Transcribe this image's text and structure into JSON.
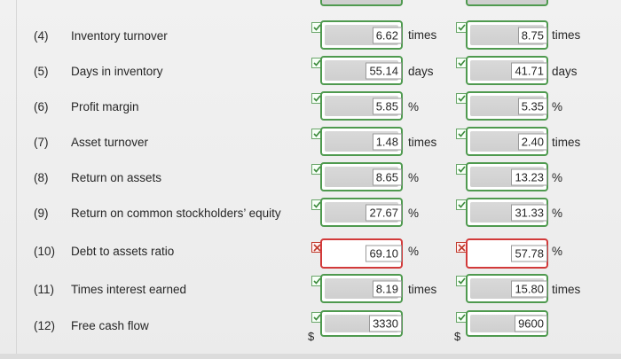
{
  "rows": [
    {
      "num": "(4)",
      "label": "Inventory turnover",
      "a": {
        "value": "6.62",
        "unit": "times",
        "status": "correct"
      },
      "b": {
        "value": "8.75",
        "unit": "times",
        "status": "correct"
      }
    },
    {
      "num": "(5)",
      "label": "Days in inventory",
      "a": {
        "value": "55.14",
        "unit": "days",
        "status": "correct"
      },
      "b": {
        "value": "41.71",
        "unit": "days",
        "status": "correct"
      }
    },
    {
      "num": "(6)",
      "label": "Profit margin",
      "a": {
        "value": "5.85",
        "unit": "%",
        "status": "correct"
      },
      "b": {
        "value": "5.35",
        "unit": "%",
        "status": "correct"
      }
    },
    {
      "num": "(7)",
      "label": "Asset turnover",
      "a": {
        "value": "1.48",
        "unit": "times",
        "status": "correct"
      },
      "b": {
        "value": "2.40",
        "unit": "times",
        "status": "correct"
      }
    },
    {
      "num": "(8)",
      "label": "Return on assets",
      "a": {
        "value": "8.65",
        "unit": "%",
        "status": "correct"
      },
      "b": {
        "value": "13.23",
        "unit": "%",
        "status": "correct"
      }
    },
    {
      "num": "(9)",
      "label": "Return on common stockholders’ equity",
      "a": {
        "value": "27.67",
        "unit": "%",
        "status": "correct"
      },
      "b": {
        "value": "31.33",
        "unit": "%",
        "status": "correct"
      }
    },
    {
      "num": "(10)",
      "label": "Debt to assets ratio",
      "a": {
        "value": "69.10",
        "unit": "%",
        "status": "incorrect"
      },
      "b": {
        "value": "57.78",
        "unit": "%",
        "status": "incorrect"
      }
    },
    {
      "num": "(11)",
      "label": "Times interest earned",
      "a": {
        "value": "8.19",
        "unit": "times",
        "status": "correct"
      },
      "b": {
        "value": "15.80",
        "unit": "times",
        "status": "correct"
      }
    },
    {
      "num": "(12)",
      "label": "Free cash flow",
      "a": {
        "value": "3330",
        "unit": "",
        "prefix": "$",
        "status": "correct"
      },
      "b": {
        "value": "9600",
        "unit": "",
        "prefix": "$",
        "status": "correct"
      }
    }
  ],
  "colors": {
    "correct": "#4f9a4f",
    "incorrect": "#d23a3a"
  }
}
